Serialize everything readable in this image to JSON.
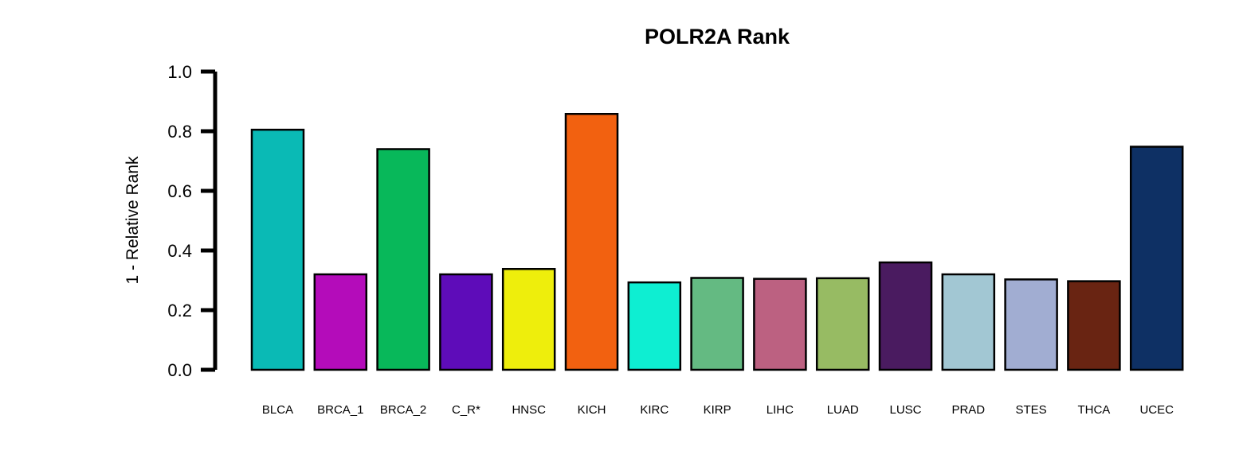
{
  "chart_data": {
    "type": "bar",
    "title": "POLR2A Rank",
    "xlabel": "",
    "ylabel": "1 - Relative Rank",
    "ylim": [
      0,
      1.0
    ],
    "yticks": [
      "0.0",
      "0.2",
      "0.4",
      "0.6",
      "0.8",
      "1.0"
    ],
    "categories": [
      "BLCA",
      "BRCA_1",
      "BRCA_2",
      "C_R*",
      "HNSC",
      "KICH",
      "KIRC",
      "KIRP",
      "LIHC",
      "LUAD",
      "LUSC",
      "PRAD",
      "STES",
      "THCA",
      "UCEC"
    ],
    "values": [
      0.805,
      0.32,
      0.74,
      0.32,
      0.338,
      0.858,
      0.293,
      0.308,
      0.305,
      0.307,
      0.36,
      0.32,
      0.303,
      0.297,
      0.748
    ],
    "colors": [
      "#0ABAB5",
      "#B40CBA",
      "#08B85A",
      "#5E0CB9",
      "#EEEE0C",
      "#F26110",
      "#0EEED2",
      "#64BA82",
      "#BC6181",
      "#97BB63",
      "#4A1B60",
      "#A2C7D3",
      "#A1ADD2",
      "#692412",
      "#0E3064"
    ],
    "grid": false,
    "legend": "none"
  }
}
